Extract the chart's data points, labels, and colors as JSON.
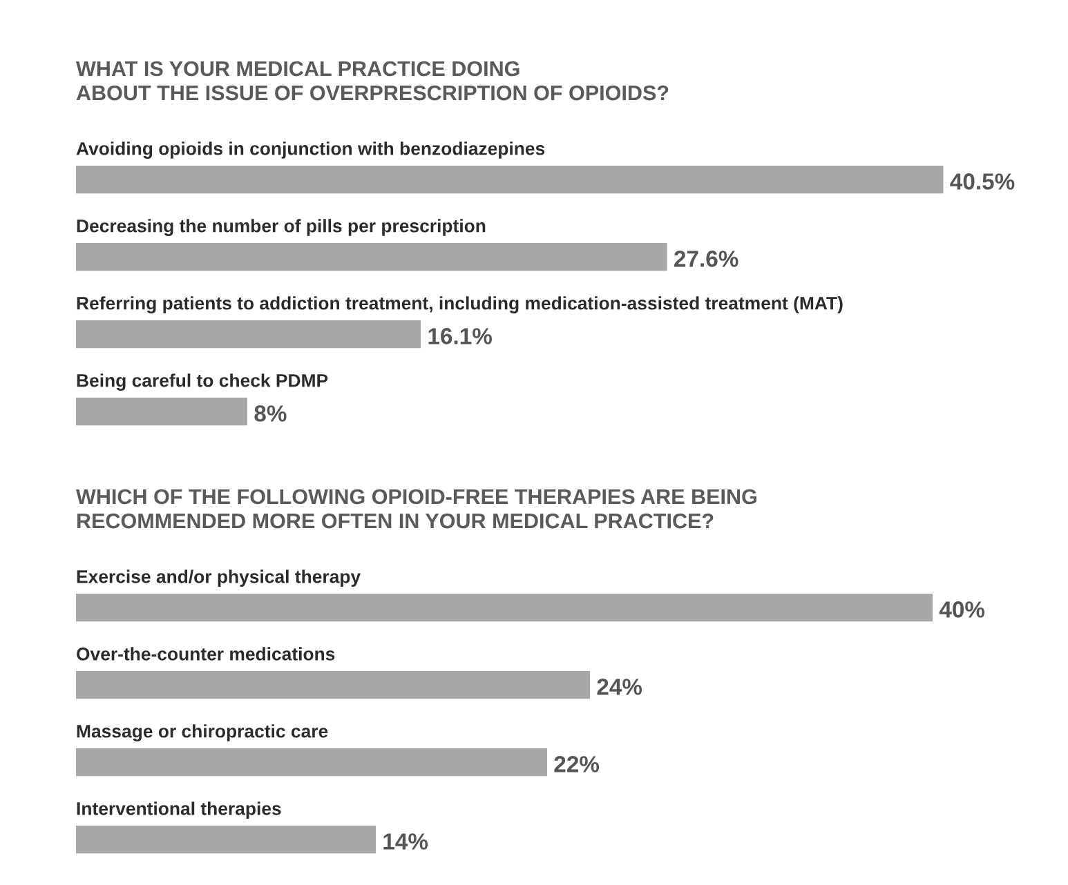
{
  "chart_data": [
    {
      "type": "bar",
      "orientation": "horizontal",
      "title": "WHAT IS YOUR MEDICAL PRACTICE DOING\nABOUT THE ISSUE OF OVERPRESCRIPTION OF OPIOIDS?",
      "categories": [
        "Avoiding opioids in conjunction with benzodiazepines",
        "Decreasing the number of pills per prescription",
        "Referring patients to addiction treatment, including medication-assisted treatment (MAT)",
        "Being careful to check PDMP"
      ],
      "values": [
        40.5,
        27.6,
        16.1,
        8
      ],
      "value_labels": [
        "40.5%",
        "27.6%",
        "16.1%",
        "8%"
      ],
      "color": "#a7a7a7"
    },
    {
      "type": "bar",
      "orientation": "horizontal",
      "title": "WHICH OF THE FOLLOWING OPIOID-FREE THERAPIES ARE BEING\nRECOMMENDED MORE OFTEN IN YOUR MEDICAL PRACTICE?",
      "categories": [
        "Exercise and/or physical therapy",
        "Over-the-counter medications",
        "Massage or chiropractic care",
        "Interventional therapies"
      ],
      "values": [
        40,
        24,
        22,
        14
      ],
      "value_labels": [
        "40%",
        "24%",
        "22%",
        "14%"
      ],
      "color": "#a7a7a7"
    }
  ]
}
